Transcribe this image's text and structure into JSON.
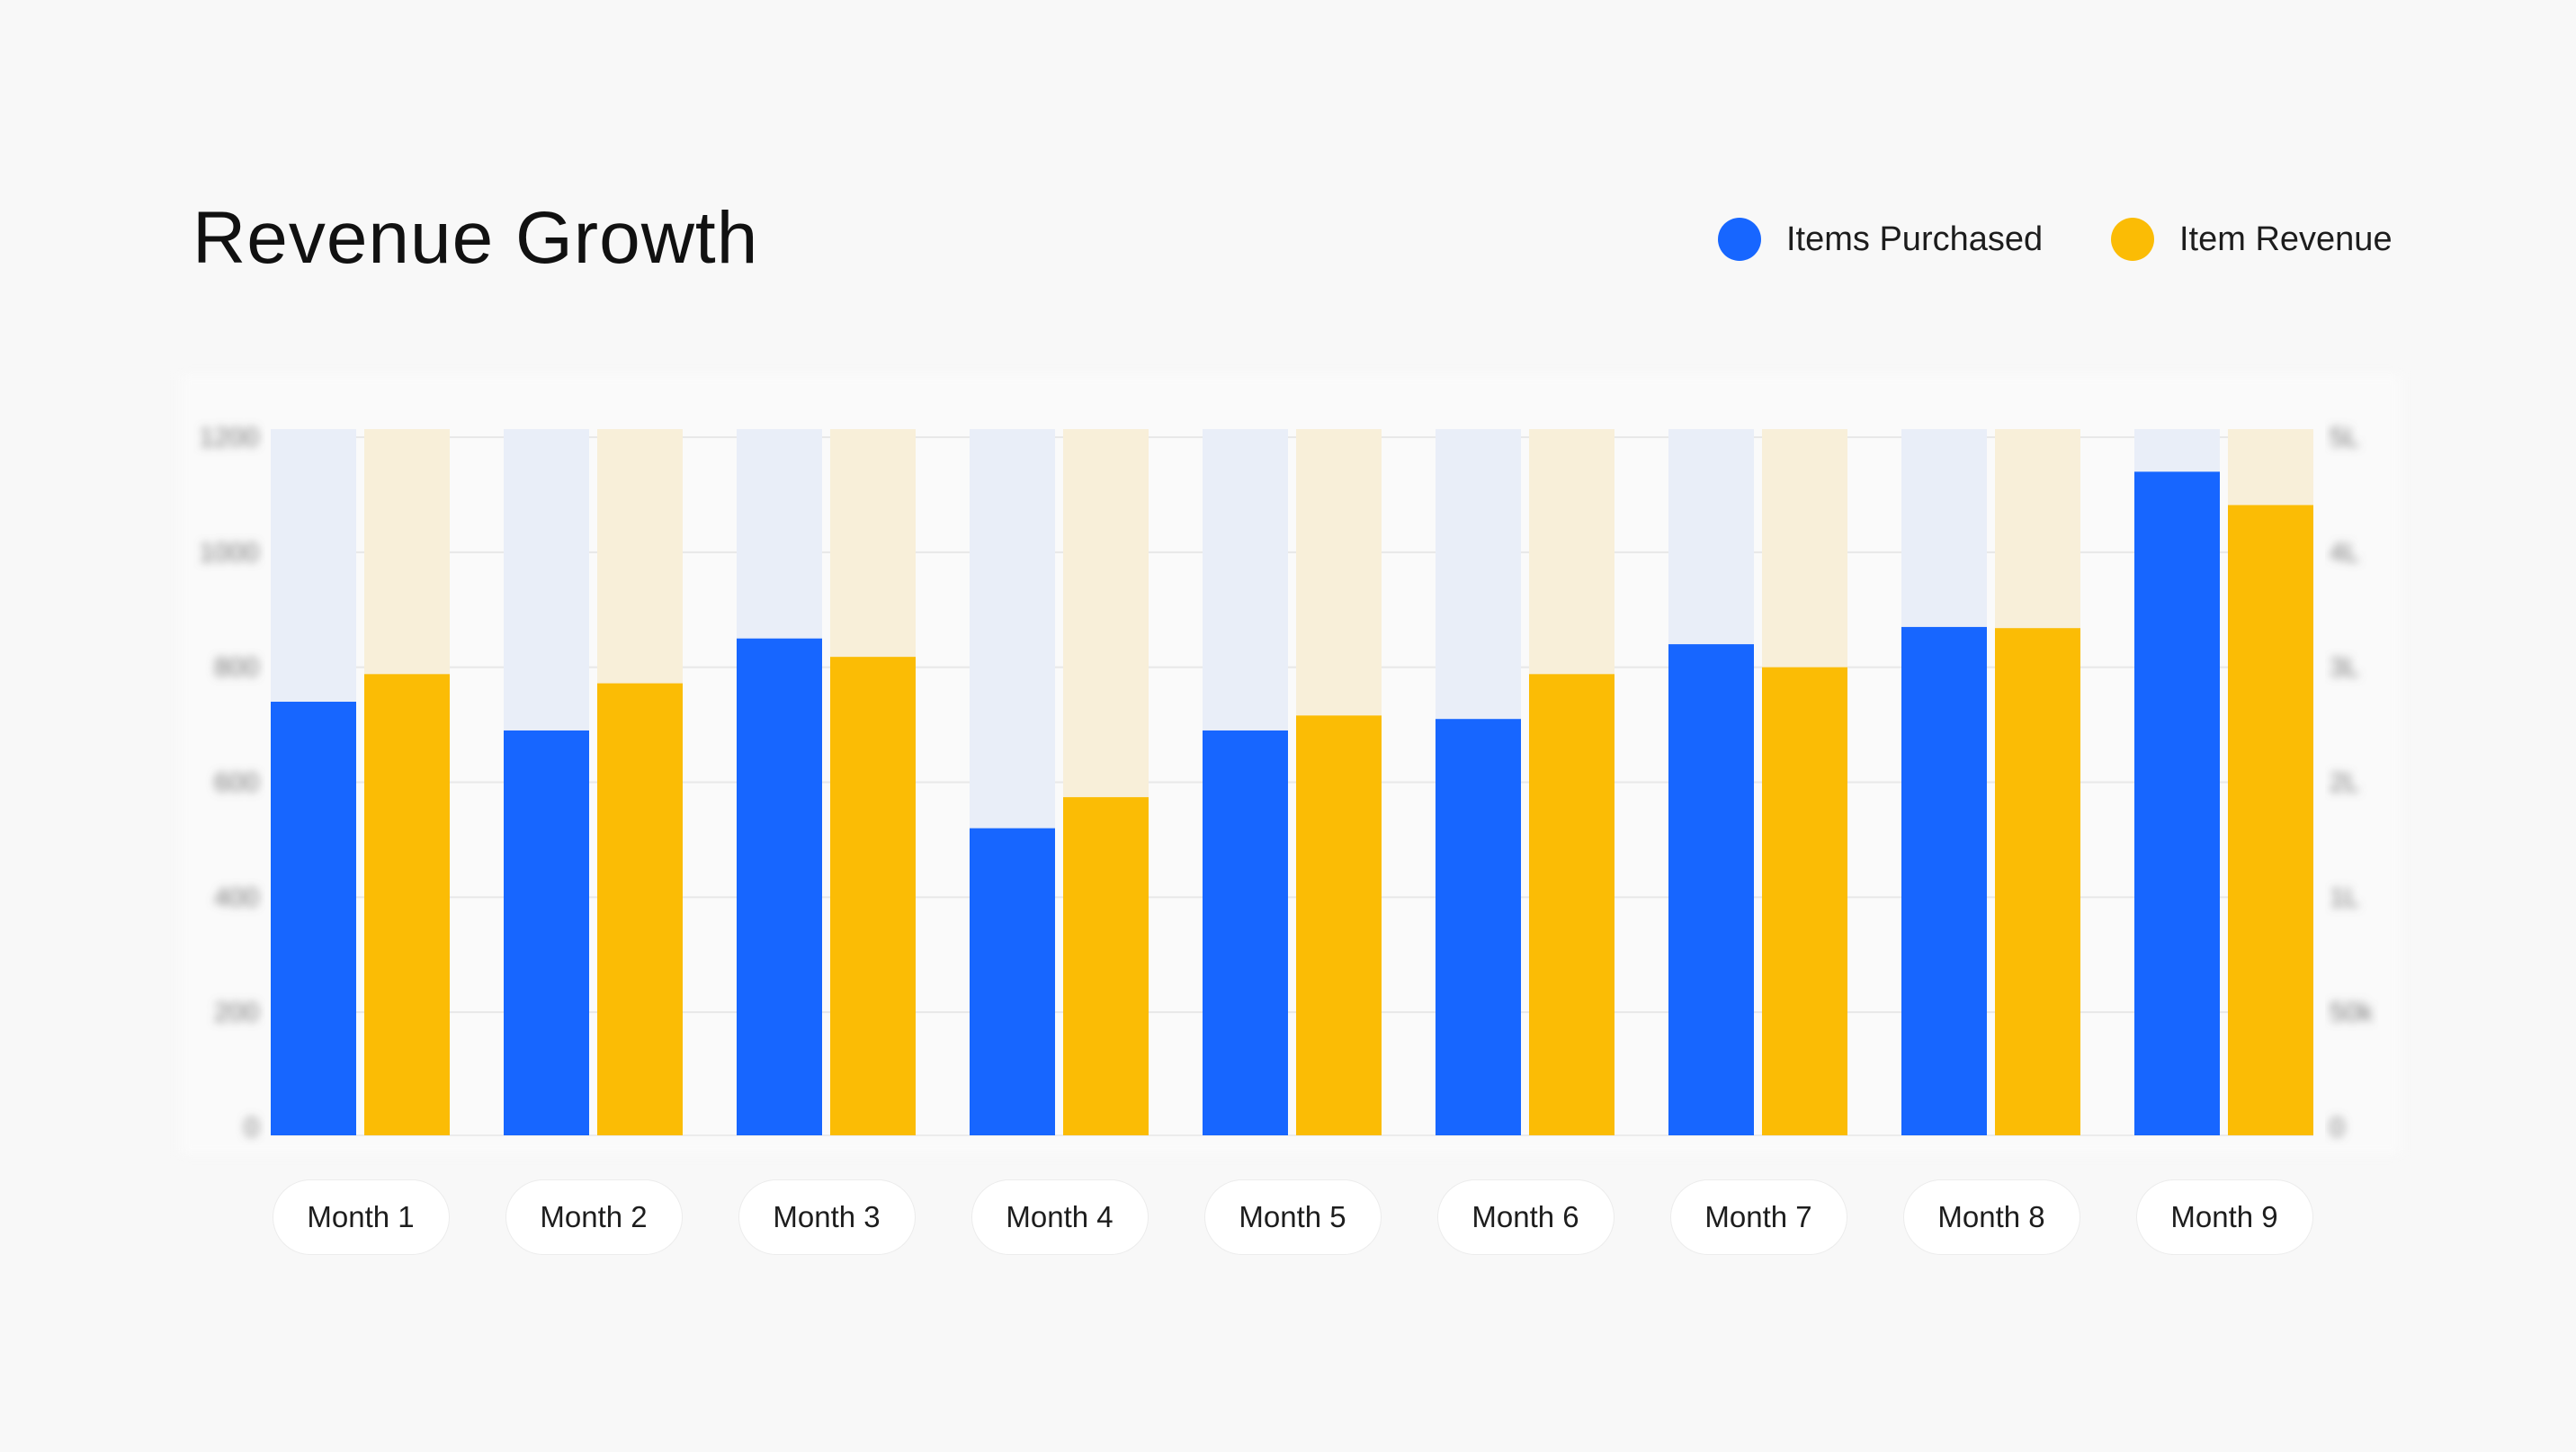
{
  "chart_data": {
    "type": "bar",
    "title": "Revenue Growth",
    "categories": [
      "Month 1",
      "Month 2",
      "Month 3",
      "Month 4",
      "Month 5",
      "Month 6",
      "Month 7",
      "Month 8",
      "Month 9"
    ],
    "series": [
      {
        "name": "Items Purchased",
        "axis": "left",
        "color": "#1766FF",
        "track_color": "#E9EEF8",
        "values": [
          740,
          690,
          850,
          520,
          690,
          710,
          840,
          870,
          1140
        ]
      },
      {
        "name": "Item Revenue",
        "axis": "right",
        "color": "#FBBC05",
        "track_color": "#F8EFD9",
        "values": [
          294000,
          286000,
          309000,
          187000,
          258000,
          294000,
          300000,
          334000,
          441000
        ]
      }
    ],
    "left_axis": {
      "ticks": [
        0,
        200,
        400,
        600,
        800,
        1000,
        1200
      ],
      "tick_labels": [
        "0",
        "200",
        "400",
        "600",
        "800",
        "1000",
        "1200"
      ],
      "ylim": [
        0,
        1200
      ]
    },
    "right_axis": {
      "ticks": [
        0,
        50000,
        100000,
        200000,
        300000,
        400000,
        500000
      ],
      "tick_labels": [
        "0",
        "50k",
        "1L",
        "2L",
        "3L",
        "4L",
        "5L"
      ]
    },
    "grid": true,
    "legend_position": "top-right"
  }
}
